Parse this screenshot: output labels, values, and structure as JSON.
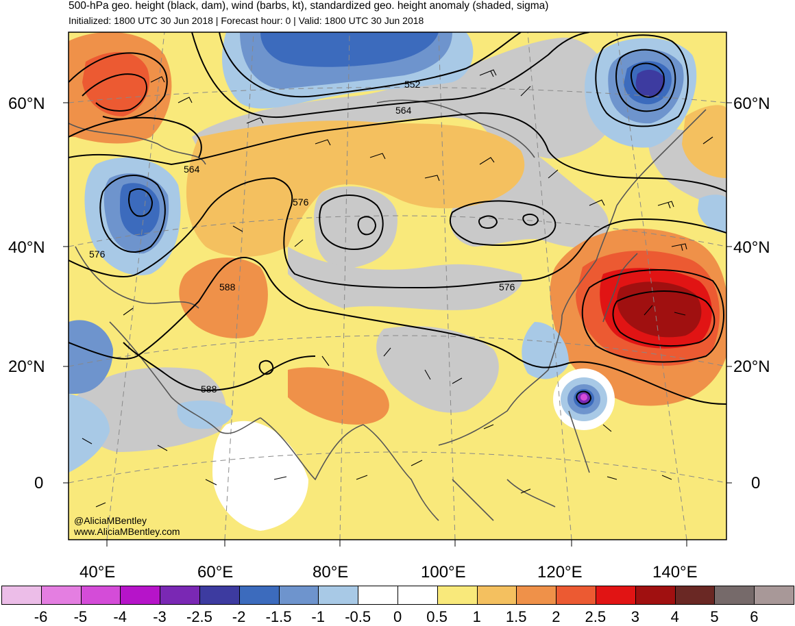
{
  "header": {
    "title": "500-hPa geo. height (black, dam), wind (barbs, kt), standardized geo. height anomaly (shaded, sigma)",
    "subtitle": "Initialized: 1800 UTC 30 Jun 2018 | Forecast hour: 0 | Valid: 1800 UTC 30 Jun 2018"
  },
  "map": {
    "lat_labels": [
      "60°N",
      "40°N",
      "20°N",
      "0"
    ],
    "lon_labels": [
      "40°E",
      "60°E",
      "80°E",
      "100°E",
      "120°E",
      "140°E"
    ],
    "contour_labels": [
      "552",
      "564",
      "564",
      "576",
      "576",
      "576",
      "588",
      "588"
    ],
    "credit_handle": "@AliciaMBentley",
    "credit_site": "www.AliciaMBentley.com"
  },
  "colorbar": {
    "labels": [
      "-6",
      "-5",
      "-4",
      "-3",
      "-2.5",
      "-2",
      "-1.5",
      "-1",
      "-0.5",
      "0",
      "0.5",
      "1",
      "1.5",
      "2",
      "2.5",
      "3",
      "4",
      "5",
      "6"
    ],
    "colors": [
      "#ecbde8",
      "#e47ee1",
      "#d44cd8",
      "#b614c9",
      "#7a28b4",
      "#3d3ba0",
      "#3c6bbd",
      "#6e94cd",
      "#a8c9e6",
      "#ffffff",
      "#ffffff",
      "#f9e97b",
      "#f4c05f",
      "#ef9149",
      "#ec5a32",
      "#e11414",
      "#a01010",
      "#6a2824",
      "#766a6a",
      "#a89898"
    ]
  }
}
